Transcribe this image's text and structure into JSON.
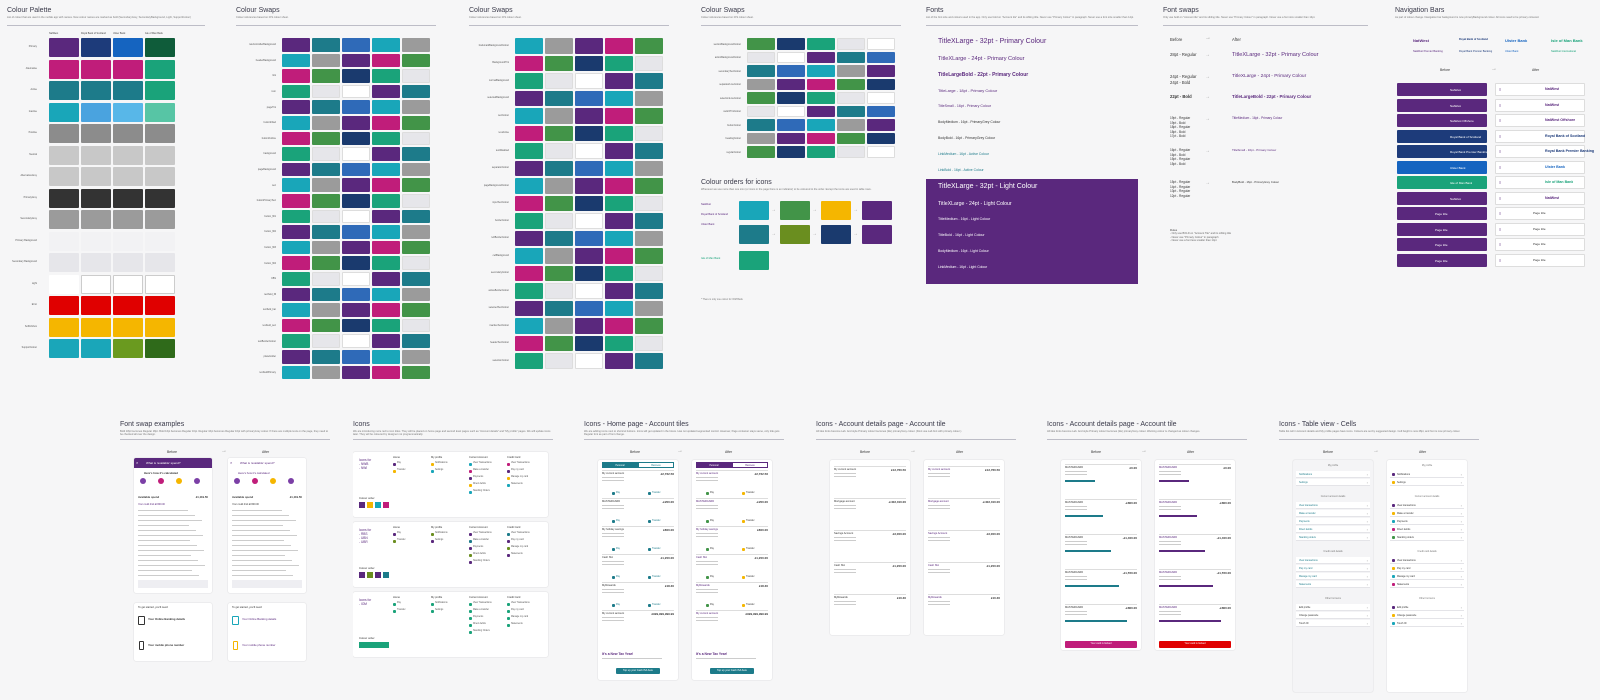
{
  "panels": {
    "colour_palette": {
      "title": "Colour Palette",
      "desc": "List of colour that are used in the mobile app with names. New colour names are marked as bold (SecondaryGrey, SecondaryBackground, Light, SupportColour)",
      "brands": [
        "NatWest",
        "Royal Bank of Scotland",
        "Ulster Bank",
        "Isle of Man Bank"
      ],
      "rows": [
        "Primary",
        "Alternative",
        "Active",
        "Inactive",
        "Positive",
        "Neutral",
        "AlternativeGrey",
        "PrimaryGrey",
        "SecondaryGrey",
        "Primary Background",
        "Secondary Background",
        "Light",
        "Error",
        "SoftInfobox",
        "SupportColour"
      ]
    },
    "colour_swaps_1": {
      "title": "Colour Swaps",
      "desc": "Colour references based on iOS colour sheet.",
      "rows": [
        "navControllerBackground",
        "headerBackground",
        "link",
        "icon",
        "pageTint",
        "buttonFilled",
        "buttonOutline",
        "background",
        "pageBackground",
        "text",
        "buttonPrimaryText",
        "button_fill1",
        "button_fill2",
        "button_fill3",
        "button_fill4",
        "CBS",
        "textfield_fill",
        "textfield_bar",
        "textfield_text",
        "textBorderColour",
        "placeholder",
        "textfieldPrimary"
      ]
    },
    "colour_swaps_2": {
      "title": "Colour Swaps",
      "desc": "Colour references based on iOS colour sheet.",
      "rows": [
        "bookmarkBackgroundColour",
        "BackgroundTint",
        "normalBackground",
        "selectedBackground",
        "textColour",
        "textActive",
        "textDisabled",
        "separatorColour",
        "pageBackgroundColour",
        "inputTextColour",
        "borderColour",
        "leftBorderColour",
        "cellBackground",
        "secondaryColour",
        "activeBorderColour",
        "selectedTextColour",
        "inactiveTextColour",
        "headerTextColour",
        "selectionColour"
      ]
    },
    "colour_swaps_3": {
      "title": "Colour Swaps",
      "desc": "Colour references based on iOS colour sheet.",
      "rows": [
        "sectionBackgroundColour",
        "actionBackgroundColour",
        "secondaryTextColour",
        "separatorLineColour",
        "selectionLineColour",
        "switchTintColour",
        "buttonColour",
        "headingColour",
        "regularColour"
      ]
    },
    "colour_orders": {
      "title": "Colour orders for icons",
      "desc": "Whenever we use more than one icon (or icons in the page there is an indicator) to be coloured to the order. Except the icons are used in table rows.",
      "brands": [
        "NatWest",
        "Royal Bank of Scotland",
        "Ulster Bank",
        "Isle of Man Bank"
      ],
      "note": "* There is only one colour for IOM Bank"
    },
    "fonts": {
      "title": "Fonts",
      "desc": "List of the font size and colours used in the app. Only use bold on \"Account tile\" and its sibling title. Never use \"Primary Colour\" in paragraph. Never use a font size smaller than 14pt.",
      "primary_lines": [
        "TitleXLarge - 32pt - Primary Colour",
        "TitleXLarge - 24pt - Primary Colour",
        "TitleLargeBold - 22pt - Primary Colour",
        "TitleLarge - 18pt - Primary Colour",
        "TitleSmall - 16pt - Primary Colour",
        "BodyMedium - 16pt - PrimaryGrey Colour",
        "BodyBold - 16pt - PrimaryGrey Colour",
        "LinkMedium - 16pt - Active Colour",
        "LinkBold - 16pt - Active Colour"
      ],
      "light_lines": [
        "TitleXLarge - 32pt - Light Colour",
        "TitleXLarge - 24pt - Light Colour",
        "TitleMedium - 16pt - Light Colour",
        "TitleBold - 16pt - Light Colour",
        "BodyMedium - 16pt - Light Colour",
        "LinkMedium - 16pt - Light Colour"
      ]
    },
    "font_swaps": {
      "title": "Font swaps",
      "desc": "Only use bold on \"Account tile\" and its sibling title. Never use \"Primary Colour\" in paragraph. Never use a font size smaller than 14pt.",
      "before": "Before",
      "after": "After",
      "rows": [
        {
          "before": "28pt - Regular",
          "after": "TitleXLarge - 32pt - Primary Colour"
        },
        {
          "before": "24pt - Regular\n24pt - Bold",
          "after": "TitleXLarge - 24pt - Primary Colour"
        },
        {
          "before": "22pt - Bold",
          "after": "TitleLargeBold - 22pt - Primary Colour"
        },
        {
          "before": "19pt - Regular\n19pt - Bold\n18pt - Regular\n18pt - Bold\n17pt - Bold",
          "after": "TitleMedium - 16pt - Primary Colour"
        },
        {
          "before": "16pt - Regular\n16pt - Bold\n15pt - Regular\n15pt - Bold",
          "after": "TitleSmall - 16pt - Primary Colour"
        },
        {
          "before": "15pt - Regular\n14pt - Regular\n13pt - Regular\n12pt - Regular",
          "after": "BodyBold - 16pt - PrimaryGrey Colour"
        }
      ],
      "rules_title": "Rules",
      "rules": [
        "- Only use BOLD on \"Account Tile\" and its sibling title",
        "- Never use \"Primary Colour\" in paragraph",
        "- Never use a font less smaller than 14pt"
      ]
    },
    "nav_bars": {
      "title": "Navigation Bars",
      "desc": "As part of colour change. Navigation bar background is now primaryBackground colour. All icons need to be primary coloured.",
      "brands": [
        "NatWest",
        "Royal Bank of Scotland",
        "Ulster Bank",
        "Isle of Man Bank"
      ],
      "sub_brands": [
        "NatWest Premier Banking",
        "Royal Bank Premier Banking",
        "Ulster Bank",
        "NatWest International"
      ],
      "before": "Before",
      "after": "After",
      "bar_labels": [
        "NatWest",
        "NatWest",
        "NatWest Offshore",
        "Royal Bank of Scotland",
        "Royal Bank Premier Banking",
        "Ulster Bank",
        "Isle of Man Bank",
        "NatWest",
        "Page title",
        "Page title",
        "Page title",
        "Page title"
      ]
    },
    "font_swap_examples": {
      "title": "Font swap examples",
      "desc": "Bold 18pt becomes Regular 18pt. Bold 16pt becomes Regular 16pt. Regular 16pt becomes Regular 16pt with primaryGrey colour. If there are multiple texts on the page, they need to be checked all over the design.",
      "before": "Before",
      "after": "After",
      "screen_title": "What is 'available' spend?",
      "screen_heading": "Here's how it's calculated",
      "available_spend": "Available spend",
      "available_value": "£1,119.50",
      "credit_limit": "Your credit limit £1500.00",
      "card2_title": "To get started, you'll need:",
      "card2_item1": "Your Online Banking details",
      "card2_item2": "Your mobile phone number"
    },
    "icons": {
      "title": "Icons",
      "desc": "We are introducing more red to icon titles. They will be placed on home page and second level pages such as \"Account details\" and \"My profile\" pages. We will update icons later. They will be coloured by designer not programmatically.",
      "groups": [
        {
          "label": "Icons for\n- NWB\n- NWI",
          "colour_order": "Colour order"
        },
        {
          "label": "Icons for\n- RBS\n- UBN\n- UBR",
          "colour_order": "Colour order"
        },
        {
          "label": "Icons for\n- IOM",
          "colour_order": "Colour order"
        }
      ],
      "cols": [
        "Home",
        "My profile",
        "Current Account",
        "Credit Card"
      ],
      "home_items": [
        "Pay",
        "Transfer"
      ],
      "profile_items": [
        "Notifications",
        "Settings"
      ],
      "account_items": [
        "View Transactions",
        "Make a transfer",
        "Payments",
        "Direct debits",
        "Standing Orders"
      ],
      "card_items": [
        "View Transactions",
        "Pay my card",
        "Manage my card",
        "Statements"
      ]
    },
    "icons_home": {
      "title": "Icons - Home page - Account tiles",
      "desc": "We are adding icons next to shortcut buttons. Icons will get updated in the future. Has not updated segmented control. However, Page container stays same, only title gets Regular font as part of font change.",
      "before": "Before",
      "after": "After",
      "tabs": [
        "Personal",
        "Business"
      ],
      "tiles": [
        {
          "name": "My current account",
          "value": "£2,762.56"
        },
        {
          "name": "MASTERCARD",
          "value": "-£200.00"
        },
        {
          "name": "My holiday savings",
          "value": "£800.00"
        },
        {
          "name": "Cash ISA",
          "value": "£1,200.00"
        },
        {
          "name": "MyRewards",
          "value": "£18.30"
        },
        {
          "name": "My current account",
          "value": "£999,999,999.99"
        }
      ],
      "actions": [
        "Pay",
        "Transfer"
      ],
      "promo_title": "It's a New Tax Year!",
      "promo_cta": "Top up your Cash ISA here"
    },
    "icons_acc_1": {
      "title": "Icons - Account details page - Account tile",
      "desc": "All tiles fonts become Lab. And style Primary colour becomes (tile) primaryGrey colour. (Dont use Lab font with primary colour.)",
      "before": "Before",
      "after": "After",
      "tiles": [
        {
          "name": "My current account",
          "value": "£12,760.50"
        },
        {
          "name": "Mortgage account",
          "value": "-£402,010.00"
        },
        {
          "name": "Savings Account",
          "value": "£3,000.00"
        },
        {
          "name": "Cash ISA",
          "value": "£1,200.00"
        },
        {
          "name": "MyRewards",
          "value": "£10.30"
        }
      ]
    },
    "icons_acc_2": {
      "title": "Icons - Account details page - Account tile",
      "desc": "All tiles fonts become Lab. And style Primary colour becomes (tile) primaryGrey colour. Warning colour is changed as colour changes.",
      "before": "Before",
      "after": "After",
      "tiles": [
        {
          "name": "MASTERCARD",
          "value": "£0.00"
        },
        {
          "name": "MASTERCARD",
          "value": "-£800.00"
        },
        {
          "name": "MASTERCARD",
          "value": "-£1,400.00"
        },
        {
          "name": "MASTERCARD",
          "value": "-£1,550.00"
        },
        {
          "name": "MASTERCARD",
          "value": "-£800.00"
        }
      ],
      "cta": "Your card is locked"
    },
    "icons_table": {
      "title": "Icons - Table view - Cells",
      "desc": "Table list cell in Account details and My profile pages have icons. Colours are set by suggested design. Cell height is now 48pt, and font is now primary colour.",
      "before": "Before",
      "after": "After",
      "sections": [
        "My profile",
        "Current account details",
        "Credit card details",
        "Other list items"
      ],
      "profile": [
        "Notifications",
        "Settings"
      ],
      "current": [
        "View transactions",
        "Make a transfer",
        "Payments",
        "Direct debits",
        "Standing orders"
      ],
      "credit": [
        "View transactions",
        "Pay my card",
        "Manage my card",
        "Statements"
      ],
      "other": [
        "Edit profile",
        "Change passcode",
        "Touch ID"
      ]
    }
  },
  "colors": {
    "primary": "#5a287d",
    "alternative": "#c01d7a",
    "active": "#1d7b8a",
    "inactive": "#19a6b9",
    "positive": "#429448",
    "neutral": "#8c8c8c",
    "altgrey": "#c8c8c8",
    "primarygrey": "#333333",
    "secondarygrey": "#9b9b9b",
    "primarybg": "#f2f2f4",
    "secondarybg": "#e6e6ea",
    "light": "#ffffff",
    "error": "#e00000",
    "softinfo": "#f5b600",
    "support": "#1aa6b9",
    "rbs_navy": "#0a2f6e",
    "ubn_blue": "#1564c0",
    "iom_green": "#1aa37a"
  }
}
